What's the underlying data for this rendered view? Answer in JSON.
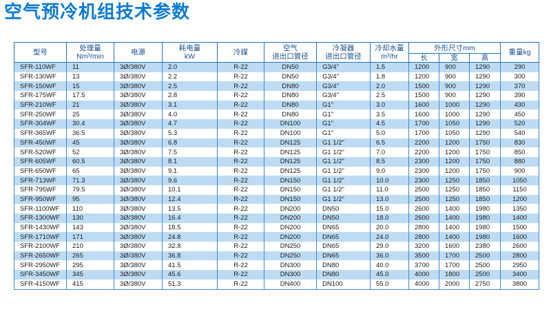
{
  "title": "空气预冷机组技术参数",
  "headers": {
    "model": "型号",
    "capacity_l1": "处理量",
    "capacity_l2": "Nm³/min",
    "power": "电源",
    "consumption_l1": "耗电量",
    "consumption_l2": "kW",
    "refrigerant": "冷媒",
    "air_l1": "空气",
    "air_l2": "进出口管径",
    "condenser_l1": "冷凝器",
    "condenser_l2": "进出口管径",
    "water_l1": "冷却水量",
    "water_l2": "m³/hr",
    "dims": "外形尺寸mm",
    "length": "长",
    "width": "宽",
    "height": "高",
    "weight": "重量kg"
  },
  "rows": [
    {
      "model": "SFR-110WF",
      "capacity": "11",
      "power": "3Ø/380V",
      "consumption": "2.0",
      "refrigerant": "R-22",
      "air": "DN50",
      "condenser": "G3/4\"",
      "water": "1.5",
      "length": "1200",
      "width": "900",
      "height": "1290",
      "weight": "290"
    },
    {
      "model": "SFR-130WF",
      "capacity": "13",
      "power": "3Ø/380V",
      "consumption": "2.2",
      "refrigerant": "R-22",
      "air": "DN50",
      "condenser": "G3/4\"",
      "water": "1.8",
      "length": "1200",
      "width": "900",
      "height": "1290",
      "weight": "300"
    },
    {
      "model": "SFR-150WF",
      "capacity": "15",
      "power": "3Ø/380V",
      "consumption": "2.5",
      "refrigerant": "R-22",
      "air": "DN80",
      "condenser": "G3/4\"",
      "water": "2.0",
      "length": "1500",
      "width": "900",
      "height": "1290",
      "weight": "370"
    },
    {
      "model": "SFR-175WF",
      "capacity": "17.5",
      "power": "3Ø/380V",
      "consumption": "2.8",
      "refrigerant": "R-22",
      "air": "DN80",
      "condenser": "G3/4\"",
      "water": "2.5",
      "length": "1500",
      "width": "900",
      "height": "1290",
      "weight": "390"
    },
    {
      "model": "SFR-210WF",
      "capacity": "21",
      "power": "3Ø/380V",
      "consumption": "3.1",
      "refrigerant": "R-22",
      "air": "DN80",
      "condenser": "G1\"",
      "water": "3.0",
      "length": "1600",
      "width": "1000",
      "height": "1290",
      "weight": "430"
    },
    {
      "model": "SFR-250WF",
      "capacity": "25",
      "power": "3Ø/380V",
      "consumption": "4.0",
      "refrigerant": "R-22",
      "air": "DN80",
      "condenser": "G1\"",
      "water": "3.5",
      "length": "1600",
      "width": "1000",
      "height": "1290",
      "weight": "450"
    },
    {
      "model": "SFR-304WF",
      "capacity": "30.4",
      "power": "3Ø/380V",
      "consumption": "4.7",
      "refrigerant": "R-22",
      "air": "DN100",
      "condenser": "G1\"",
      "water": "4.5",
      "length": "1700",
      "width": "1050",
      "height": "1290",
      "weight": "520"
    },
    {
      "model": "SFR-365WF",
      "capacity": "36.5",
      "power": "3Ø/380V",
      "consumption": "5.3",
      "refrigerant": "R-22",
      "air": "DN100",
      "condenser": "G1\"",
      "water": "5.0",
      "length": "1700",
      "width": "1050",
      "height": "1290",
      "weight": "540"
    },
    {
      "model": "SFR-450WF",
      "capacity": "45",
      "power": "3Ø/380V",
      "consumption": "6.8",
      "refrigerant": "R-22",
      "air": "DN125",
      "condenser": "G1 1/2\"",
      "water": "6.5",
      "length": "2200",
      "width": "1200",
      "height": "1750",
      "weight": "830"
    },
    {
      "model": "SFR-520WF",
      "capacity": "52",
      "power": "3Ø/380V",
      "consumption": "7.5",
      "refrigerant": "R-22",
      "air": "DN125",
      "condenser": "G1 1/2\"",
      "water": "7.0",
      "length": "2200",
      "width": "1200",
      "height": "1750",
      "weight": "850"
    },
    {
      "model": "SFR-605WF",
      "capacity": "60.5",
      "power": "3Ø/380V",
      "consumption": "8.1",
      "refrigerant": "R-22",
      "air": "DN125",
      "condenser": "G1 1/2\"",
      "water": "8.5",
      "length": "2300",
      "width": "1200",
      "height": "1750",
      "weight": "880"
    },
    {
      "model": "SFR-650WF",
      "capacity": "65",
      "power": "3Ø/380V",
      "consumption": "9.1",
      "refrigerant": "R-22",
      "air": "DN125",
      "condenser": "G1 1/2\"",
      "water": "9.0",
      "length": "2300",
      "width": "1200",
      "height": "1750",
      "weight": "900"
    },
    {
      "model": "SFR-713WF",
      "capacity": "71.3",
      "power": "3Ø/380V",
      "consumption": "9.6",
      "refrigerant": "R-22",
      "air": "DN150",
      "condenser": "G1 1/2\"",
      "water": "10.0",
      "length": "2300",
      "width": "1250",
      "height": "1850",
      "weight": "1050"
    },
    {
      "model": "SFR-795WF",
      "capacity": "79.5",
      "power": "3Ø/380V",
      "consumption": "10.1",
      "refrigerant": "R-22",
      "air": "DN150",
      "condenser": "G1 1/2\"",
      "water": "11.0",
      "length": "2500",
      "width": "1250",
      "height": "1850",
      "weight": "1150"
    },
    {
      "model": "SFR-950WF",
      "capacity": "95",
      "power": "3Ø/380V",
      "consumption": "12.4",
      "refrigerant": "R-22",
      "air": "DN150",
      "condenser": "G1 1/2\"",
      "water": "13.0",
      "length": "2500",
      "width": "1250",
      "height": "1850",
      "weight": "1200"
    },
    {
      "model": "SFR-1100WF",
      "capacity": "110",
      "power": "3Ø/380V",
      "consumption": "13.5",
      "refrigerant": "R-22",
      "air": "DN200",
      "condenser": "DN50",
      "water": "15.0",
      "length": "2600",
      "width": "1400",
      "height": "1980",
      "weight": "1350"
    },
    {
      "model": "SFR-1300WF",
      "capacity": "130",
      "power": "3Ø/380V",
      "consumption": "16.4",
      "refrigerant": "R-22",
      "air": "DN200",
      "condenser": "DN50",
      "water": "18.0",
      "length": "2600",
      "width": "1400",
      "height": "1980",
      "weight": "1400"
    },
    {
      "model": "SFR-1430WF",
      "capacity": "143",
      "power": "3Ø/380V",
      "consumption": "18.5",
      "refrigerant": "R-22",
      "air": "DN200",
      "condenser": "DN65",
      "water": "20.0",
      "length": "2800",
      "width": "1400",
      "height": "1980",
      "weight": "1500"
    },
    {
      "model": "SFR-1710WF",
      "capacity": "171",
      "power": "3Ø/380V",
      "consumption": "24.8",
      "refrigerant": "R-22",
      "air": "DN200",
      "condenser": "DN65",
      "water": "24.0",
      "length": "2800",
      "width": "1400",
      "height": "1980",
      "weight": "1600"
    },
    {
      "model": "SFR-2100WF",
      "capacity": "210",
      "power": "3Ø/380V",
      "consumption": "32.8",
      "refrigerant": "R-22",
      "air": "DN250",
      "condenser": "DN65",
      "water": "29.0",
      "length": "3200",
      "width": "1600",
      "height": "2380",
      "weight": "2600"
    },
    {
      "model": "SFR-2650WF",
      "capacity": "265",
      "power": "3Ø/380V",
      "consumption": "36.8",
      "refrigerant": "R-22",
      "air": "DN250",
      "condenser": "DN65",
      "water": "36.0",
      "length": "3500",
      "width": "1700",
      "height": "2500",
      "weight": "2800"
    },
    {
      "model": "SFR-2950WF",
      "capacity": "295",
      "power": "3Ø/380V",
      "consumption": "41.5",
      "refrigerant": "R-22",
      "air": "DN300",
      "condenser": "DN80",
      "water": "40.0",
      "length": "3700",
      "width": "1700",
      "height": "2500",
      "weight": "2950"
    },
    {
      "model": "SFR-3450WF",
      "capacity": "345",
      "power": "3Ø/380V",
      "consumption": "45.6",
      "refrigerant": "R-22",
      "air": "DN300",
      "condenser": "DN80",
      "water": "45.0",
      "length": "4000",
      "width": "1800",
      "height": "2500",
      "weight": "3400"
    },
    {
      "model": "SFR-4150WF",
      "capacity": "415",
      "power": "3Ø/380V",
      "consumption": "51.3",
      "refrigerant": "R-22",
      "air": "DN400",
      "condenser": "DN100",
      "water": "55.0",
      "length": "4000",
      "width": "2000",
      "height": "2750",
      "weight": "3800"
    }
  ]
}
